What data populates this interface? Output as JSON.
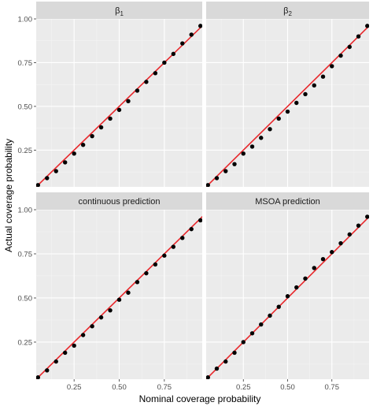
{
  "colors": {
    "panel_background": "#ebebeb",
    "grid_major": "#ffffff",
    "grid_minor": "#f4f4f4",
    "strip_background": "#d9d9d9",
    "points": "#000000",
    "reference_line": "#e8272b"
  },
  "chart_data": {
    "type": "scatter",
    "facets": [
      "β1",
      "β2",
      "continuous prediction",
      "MSOA prediction"
    ],
    "facet_strip_labels": [
      {
        "main": "β",
        "sub": "1"
      },
      {
        "main": "β",
        "sub": "2"
      },
      {
        "main": "continuous prediction",
        "sub": ""
      },
      {
        "main": "MSOA prediction",
        "sub": ""
      }
    ],
    "xlabel": "Nominal coverage probability",
    "ylabel": "Actual coverage probability",
    "xlim": [
      0.04,
      0.96
    ],
    "ylim": [
      0.04,
      1.0
    ],
    "x_ticks": [
      0.25,
      0.5,
      0.75
    ],
    "x_tick_labels": [
      "0.25",
      "0.50",
      "0.75"
    ],
    "y_ticks": [
      0.25,
      0.5,
      0.75,
      1.0
    ],
    "y_tick_labels": [
      "0.25",
      "0.50",
      "0.75",
      "1.00"
    ],
    "grid": true,
    "reference_line": {
      "intercept": 0,
      "slope": 1
    },
    "x": [
      0.05,
      0.1,
      0.15,
      0.2,
      0.25,
      0.3,
      0.35,
      0.4,
      0.45,
      0.5,
      0.55,
      0.6,
      0.65,
      0.7,
      0.75,
      0.8,
      0.85,
      0.9,
      0.95
    ],
    "series": [
      {
        "values": [
          0.05,
          0.09,
          0.13,
          0.18,
          0.23,
          0.28,
          0.33,
          0.38,
          0.43,
          0.48,
          0.53,
          0.59,
          0.64,
          0.69,
          0.75,
          0.8,
          0.86,
          0.91,
          0.96
        ]
      },
      {
        "values": [
          0.05,
          0.09,
          0.13,
          0.17,
          0.23,
          0.27,
          0.32,
          0.37,
          0.43,
          0.47,
          0.52,
          0.57,
          0.62,
          0.67,
          0.73,
          0.79,
          0.84,
          0.9,
          0.96
        ]
      },
      {
        "values": [
          0.05,
          0.09,
          0.14,
          0.19,
          0.23,
          0.29,
          0.34,
          0.39,
          0.43,
          0.49,
          0.53,
          0.59,
          0.64,
          0.69,
          0.74,
          0.79,
          0.84,
          0.89,
          0.94
        ]
      },
      {
        "values": [
          0.05,
          0.1,
          0.14,
          0.19,
          0.25,
          0.3,
          0.35,
          0.4,
          0.45,
          0.51,
          0.56,
          0.61,
          0.67,
          0.72,
          0.76,
          0.81,
          0.86,
          0.91,
          0.96
        ]
      }
    ]
  }
}
